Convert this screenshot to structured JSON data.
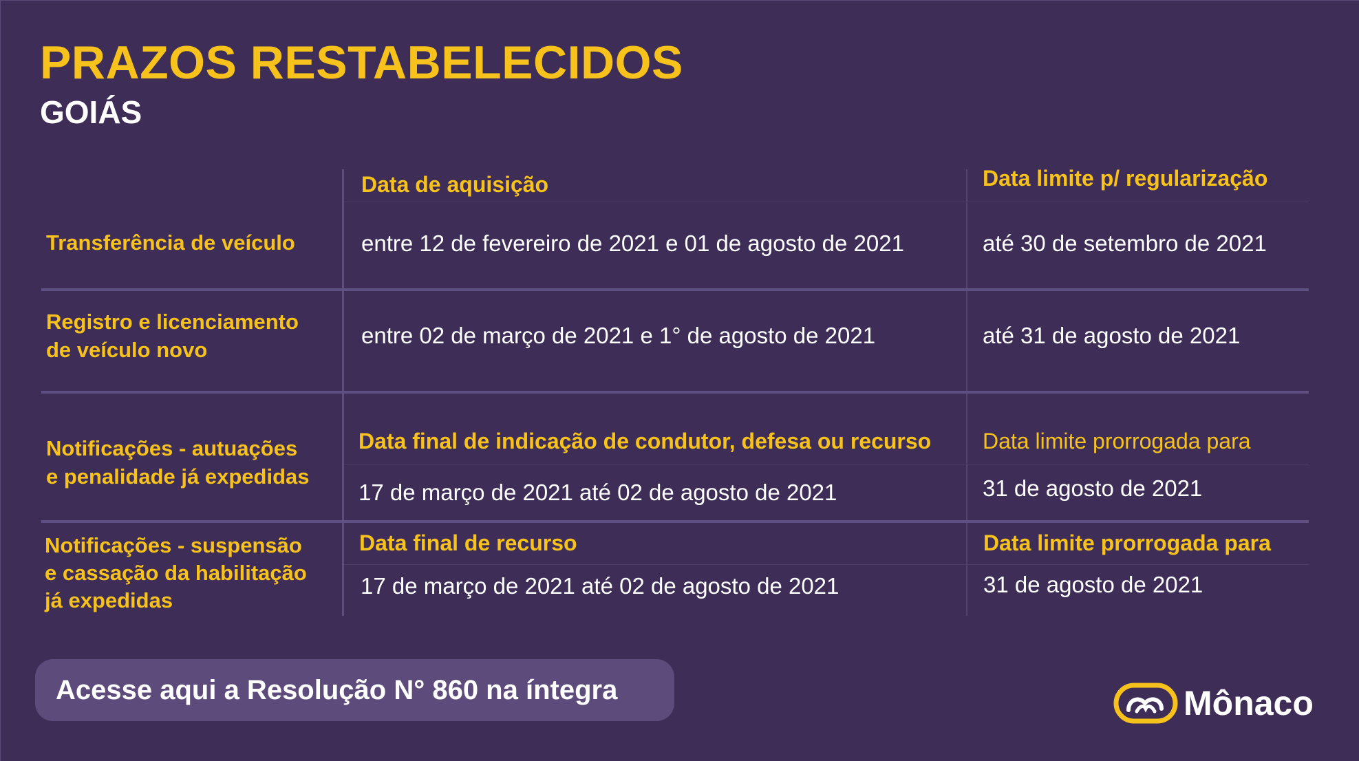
{
  "header": {
    "title": "PRAZOS RESTABELECIDOS",
    "subtitle": "GOIÁS"
  },
  "table": {
    "rows": [
      {
        "label_lines": [
          "Transferência de veículo"
        ],
        "col1_header": "Data de aquisição",
        "col1_value": "entre 12 de fevereiro de 2021 e 01 de agosto de 2021",
        "col2_header": "Data limite p/ regularização",
        "col2_value": "até 30 de setembro de 2021"
      },
      {
        "label_lines": [
          "Registro e licenciamento",
          "de veículo novo"
        ],
        "col1_value": "entre 02 de março de 2021 e 1° de agosto de 2021",
        "col2_value": "até 31 de agosto de 2021"
      },
      {
        "label_lines": [
          "Notificações - autuações",
          "e penalidade já expedidas"
        ],
        "col1_header": "Data final de indicação de condutor, defesa ou recurso",
        "col1_value": "17 de março de 2021 até 02 de agosto de 2021",
        "col2_header": "Data limite prorrogada para",
        "col2_value": "31 de agosto de 2021"
      },
      {
        "label_lines": [
          "Notificações - suspensão",
          "e cassação da habilitação",
          "já expedidas"
        ],
        "col1_header": "Data final de recurso",
        "col1_value": "17 de março de 2021 até 02 de agosto de 2021",
        "col2_header": "Data limite prorrogada para",
        "col2_value": "31 de agosto de 2021"
      }
    ]
  },
  "footer": {
    "resolution_link": "Acesse aqui a Resolução N° 860 na íntegra",
    "logo_text": "Mônaco",
    "logo_icon": "monaco-logo-icon"
  },
  "colors": {
    "background": "#3d2d57",
    "accent": "#f7c21b",
    "button": "#5d4c7b",
    "text": "#ffffff"
  }
}
